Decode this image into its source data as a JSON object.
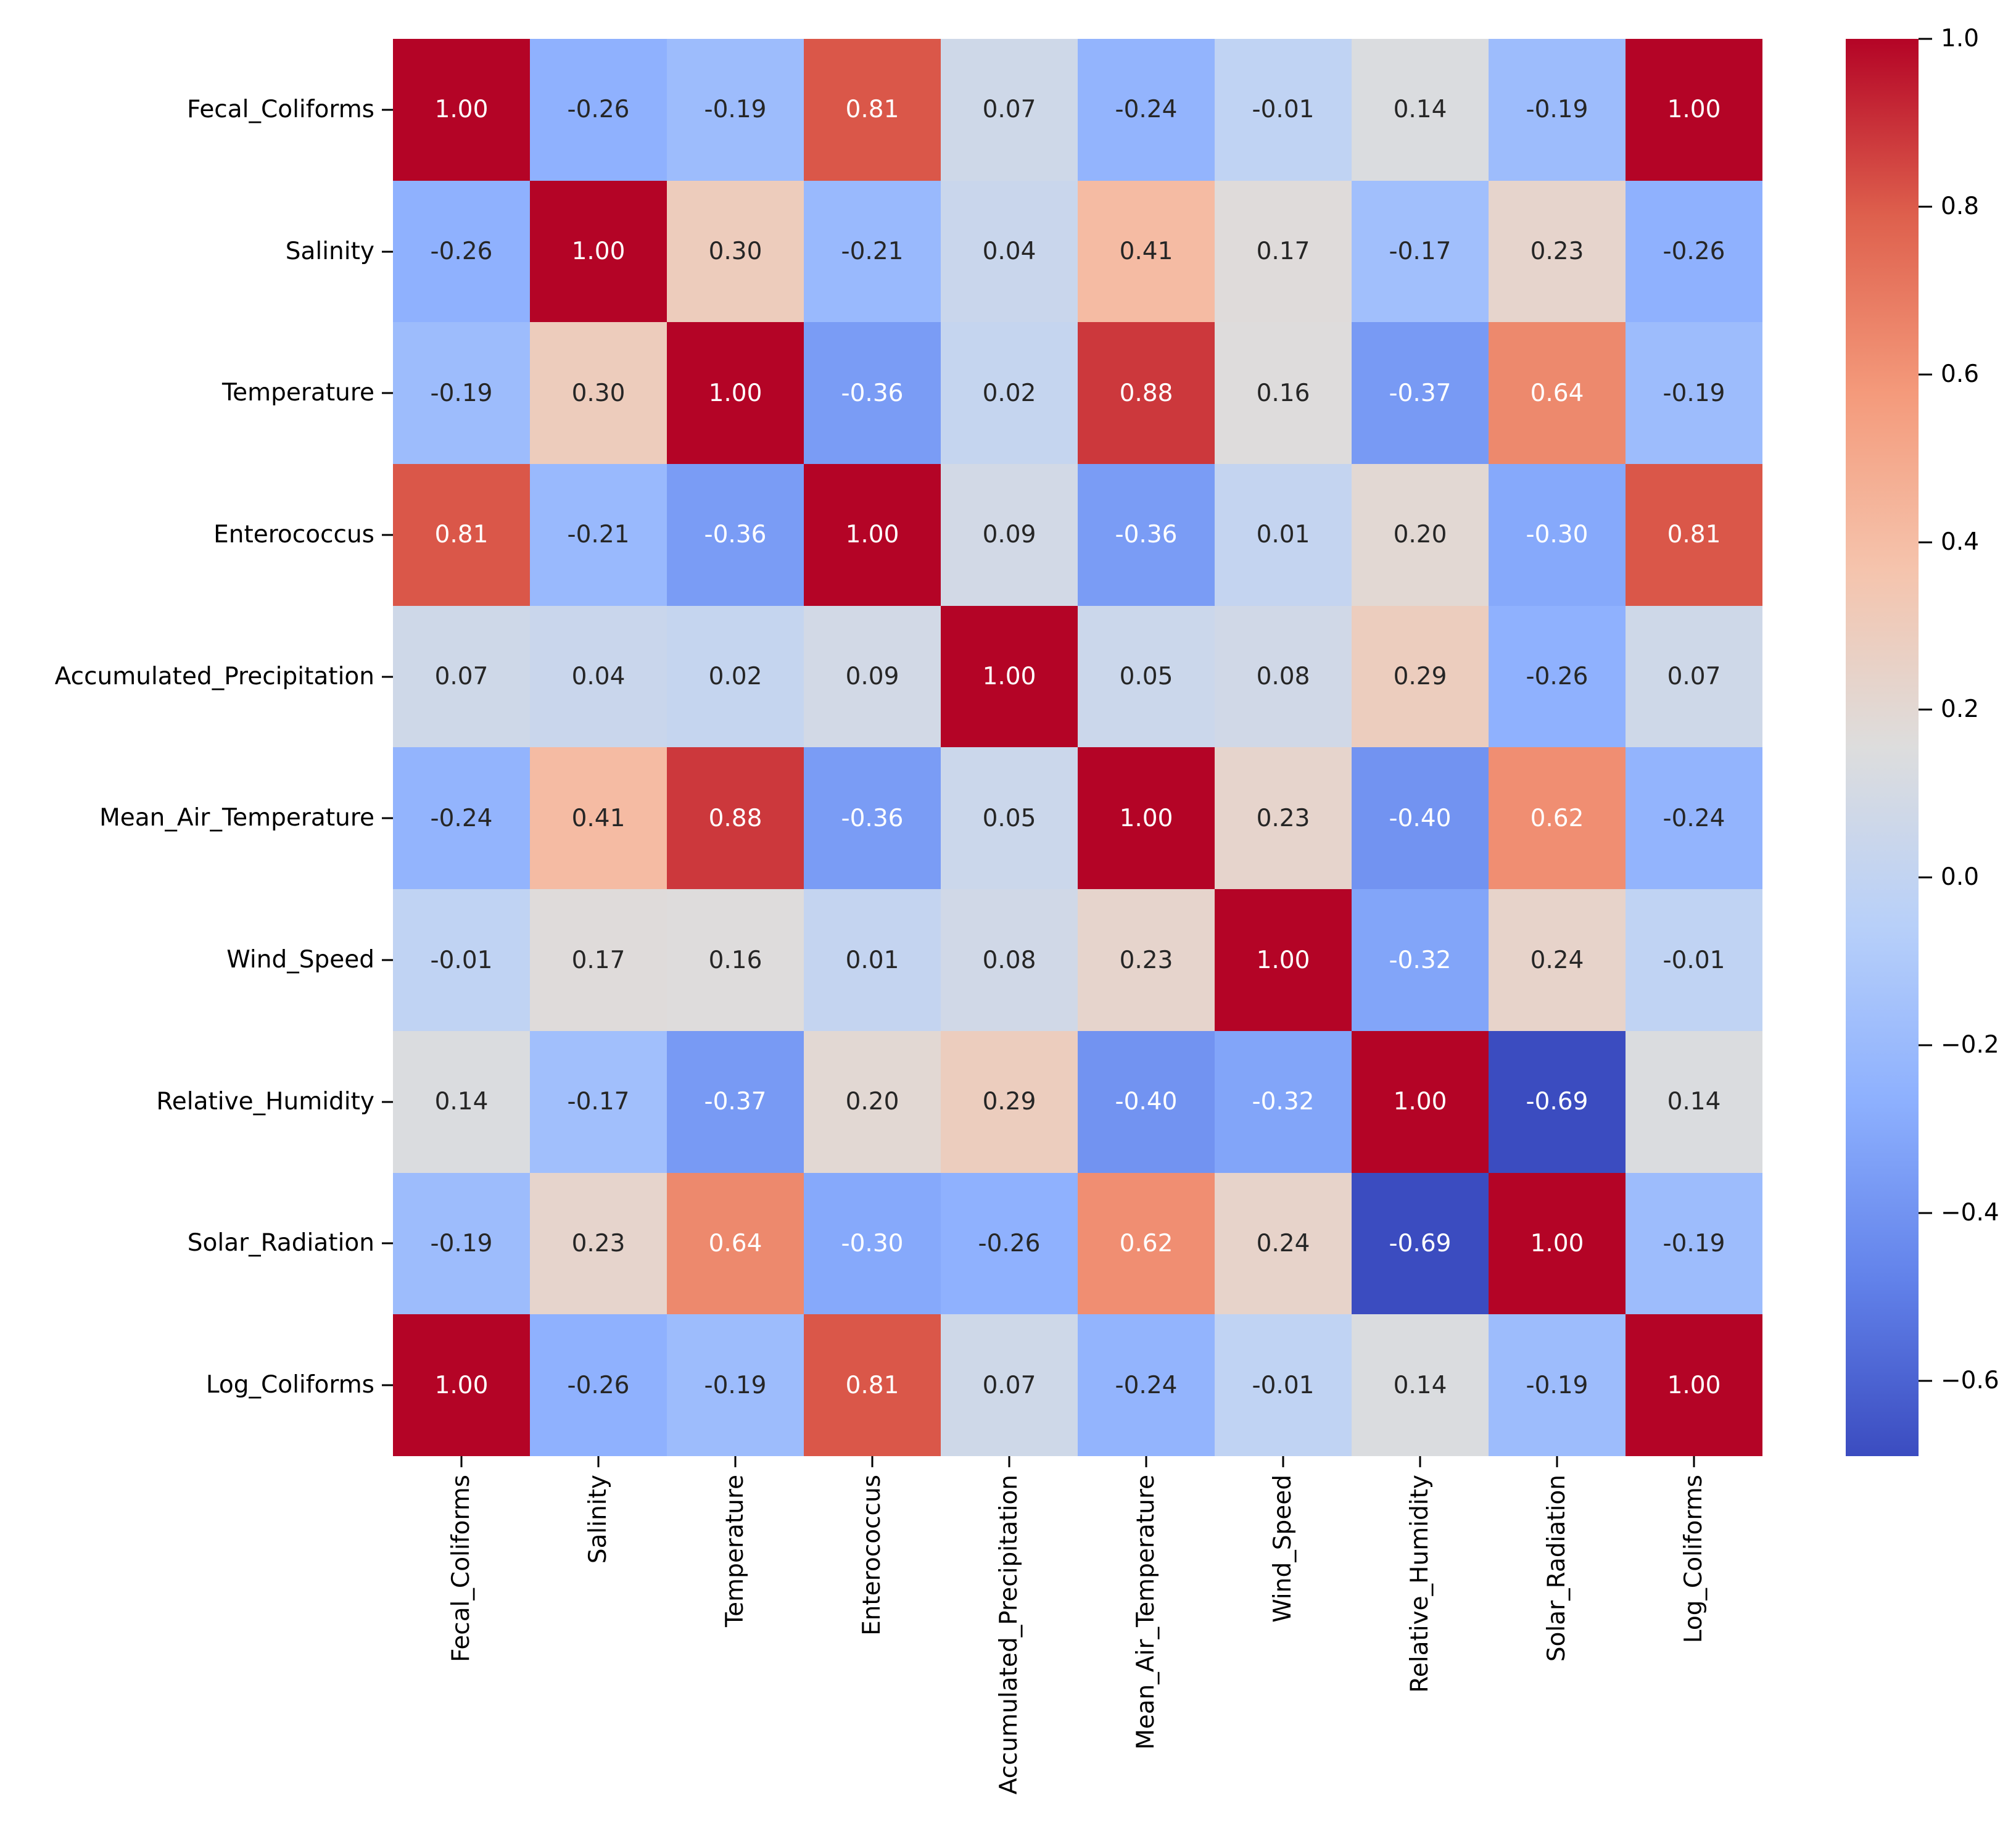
{
  "figure": {
    "background": "#ffffff"
  },
  "chart_data": {
    "type": "heatmap",
    "title": "",
    "x_categories": [
      "Fecal_Coliforms",
      "Salinity",
      "Temperature",
      "Enterococcus",
      "Accumulated_Precipitation",
      "Mean_Air_Temperature",
      "Wind_Speed",
      "Relative_Humidity",
      "Solar_Radiation",
      "Log_Coliforms"
    ],
    "y_categories": [
      "Fecal_Coliforms",
      "Salinity",
      "Temperature",
      "Enterococcus",
      "Accumulated_Precipitation",
      "Mean_Air_Temperature",
      "Wind_Speed",
      "Relative_Humidity",
      "Solar_Radiation",
      "Log_Coliforms"
    ],
    "matrix": [
      [
        1.0,
        -0.26,
        -0.19,
        0.81,
        0.07,
        -0.24,
        -0.01,
        0.14,
        -0.19,
        1.0
      ],
      [
        -0.26,
        1.0,
        0.3,
        -0.21,
        0.04,
        0.41,
        0.17,
        -0.17,
        0.23,
        -0.26
      ],
      [
        -0.19,
        0.3,
        1.0,
        -0.36,
        0.02,
        0.88,
        0.16,
        -0.37,
        0.64,
        -0.19
      ],
      [
        0.81,
        -0.21,
        -0.36,
        1.0,
        0.09,
        -0.36,
        0.01,
        0.2,
        -0.3,
        0.81
      ],
      [
        0.07,
        0.04,
        0.02,
        0.09,
        1.0,
        0.05,
        0.08,
        0.29,
        -0.26,
        0.07
      ],
      [
        -0.24,
        0.41,
        0.88,
        -0.36,
        0.05,
        1.0,
        0.23,
        -0.4,
        0.62,
        -0.24
      ],
      [
        -0.01,
        0.17,
        0.16,
        0.01,
        0.08,
        0.23,
        1.0,
        -0.32,
        0.24,
        -0.01
      ],
      [
        0.14,
        -0.17,
        -0.37,
        0.2,
        0.29,
        -0.4,
        -0.32,
        1.0,
        -0.69,
        0.14
      ],
      [
        -0.19,
        0.23,
        0.64,
        -0.3,
        -0.26,
        0.62,
        0.24,
        -0.69,
        1.0,
        -0.19
      ],
      [
        1.0,
        -0.26,
        -0.19,
        0.81,
        0.07,
        -0.24,
        -0.01,
        0.14,
        -0.19,
        1.0
      ]
    ],
    "value_decimals": 2,
    "vmin": -0.69,
    "vmax": 1.0,
    "grid": false,
    "legend_position": "right-colorbar",
    "colormap": {
      "name": "coolwarm",
      "anchors": [
        {
          "t": 0.0,
          "hex": "#3b4cc0"
        },
        {
          "t": 0.125,
          "hex": "#6282ea"
        },
        {
          "t": 0.25,
          "hex": "#8db0fe"
        },
        {
          "t": 0.375,
          "hex": "#b8d0f9"
        },
        {
          "t": 0.5,
          "hex": "#dddddd"
        },
        {
          "t": 0.625,
          "hex": "#f5c4ad"
        },
        {
          "t": 0.75,
          "hex": "#f49a7b"
        },
        {
          "t": 0.875,
          "hex": "#de604d"
        },
        {
          "t": 1.0,
          "hex": "#b40426"
        }
      ]
    },
    "colorbar": {
      "ticks": [
        {
          "value": 1.0,
          "label": "1.0"
        },
        {
          "value": 0.8,
          "label": "0.8"
        },
        {
          "value": 0.6,
          "label": "0.6"
        },
        {
          "value": 0.4,
          "label": "0.4"
        },
        {
          "value": 0.2,
          "label": "0.2"
        },
        {
          "value": 0.0,
          "label": "0.0"
        },
        {
          "value": -0.2,
          "label": "−0.2"
        },
        {
          "value": -0.4,
          "label": "−0.4"
        },
        {
          "value": -0.6,
          "label": "−0.6"
        }
      ]
    },
    "text": {
      "annotation_dark": "#262626",
      "annotation_light": "#ffffff",
      "luminance_threshold": 0.408,
      "tick_label_color": "#000000"
    }
  }
}
